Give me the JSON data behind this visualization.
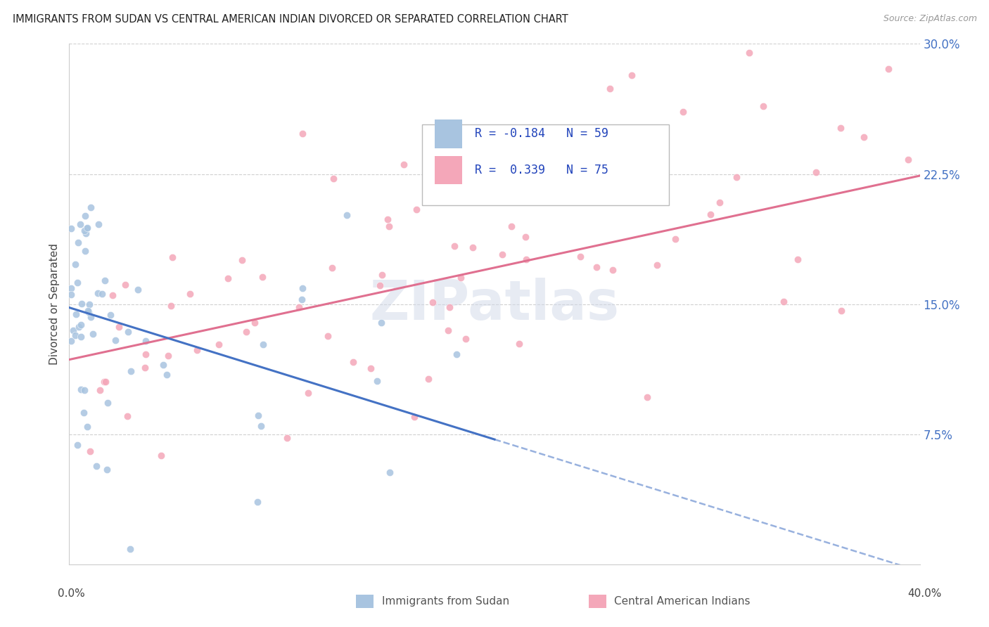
{
  "title": "IMMIGRANTS FROM SUDAN VS CENTRAL AMERICAN INDIAN DIVORCED OR SEPARATED CORRELATION CHART",
  "source": "Source: ZipAtlas.com",
  "ylabel_label": "Divorced or Separated",
  "legend_label1": "Immigrants from Sudan",
  "legend_label2": "Central American Indians",
  "color_sudan": "#a8c4e0",
  "color_central": "#f4a7b9",
  "color_trend_sudan": "#4472c4",
  "color_trend_central": "#e07090",
  "watermark_text": "ZIPatlas",
  "xmin": 0.0,
  "xmax": 0.4,
  "ymin": 0.0,
  "ymax": 0.3,
  "ytick_positions": [
    0.075,
    0.15,
    0.225,
    0.3
  ],
  "ytick_labels": [
    "7.5%",
    "15.0%",
    "22.5%",
    "30.0%"
  ],
  "xtick_labels_left": "0.0%",
  "xtick_labels_right": "40.0%",
  "sudan_intercept": 0.148,
  "sudan_slope": -0.38,
  "central_intercept": 0.118,
  "central_slope": 0.265,
  "legend_text": [
    "R = -0.184   N = 59",
    "R =  0.339   N = 75"
  ]
}
